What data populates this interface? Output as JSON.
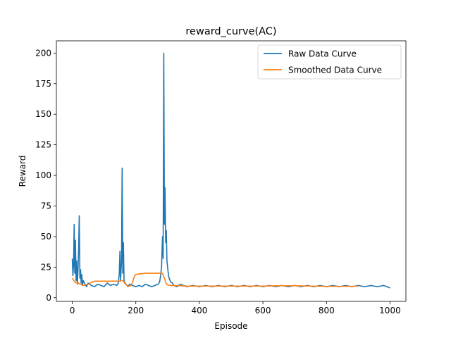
{
  "chart_data": {
    "type": "line",
    "title": "reward_curve(AC)",
    "xlabel": "Episode",
    "ylabel": "Reward",
    "xlim": [
      -50,
      1050
    ],
    "ylim": [
      -3,
      210
    ],
    "xticks": [
      0,
      200,
      400,
      600,
      800,
      1000
    ],
    "yticks": [
      0,
      25,
      50,
      75,
      100,
      125,
      150,
      175,
      200
    ],
    "grid": false,
    "legend_position": "top-right",
    "series": [
      {
        "name": "Raw Data Curve",
        "color": "#1f77b4",
        "points": [
          [
            0,
            32
          ],
          [
            2,
            18
          ],
          [
            4,
            26
          ],
          [
            6,
            60
          ],
          [
            8,
            20
          ],
          [
            10,
            47
          ],
          [
            12,
            14
          ],
          [
            14,
            30
          ],
          [
            16,
            11
          ],
          [
            18,
            22
          ],
          [
            20,
            40
          ],
          [
            22,
            67
          ],
          [
            24,
            16
          ],
          [
            26,
            23
          ],
          [
            28,
            12
          ],
          [
            30,
            19
          ],
          [
            32,
            10
          ],
          [
            35,
            14
          ],
          [
            40,
            11
          ],
          [
            45,
            9
          ],
          [
            50,
            12
          ],
          [
            60,
            10
          ],
          [
            70,
            9
          ],
          [
            80,
            11
          ],
          [
            90,
            10
          ],
          [
            100,
            9
          ],
          [
            110,
            12
          ],
          [
            120,
            10
          ],
          [
            130,
            11
          ],
          [
            140,
            10
          ],
          [
            145,
            12
          ],
          [
            148,
            20
          ],
          [
            150,
            38
          ],
          [
            152,
            14
          ],
          [
            155,
            30
          ],
          [
            157,
            106
          ],
          [
            159,
            20
          ],
          [
            161,
            45
          ],
          [
            163,
            14
          ],
          [
            166,
            12
          ],
          [
            170,
            11
          ],
          [
            175,
            9
          ],
          [
            180,
            11
          ],
          [
            190,
            10
          ],
          [
            200,
            9
          ],
          [
            210,
            10
          ],
          [
            220,
            9
          ],
          [
            230,
            11
          ],
          [
            240,
            10
          ],
          [
            250,
            9
          ],
          [
            260,
            10
          ],
          [
            270,
            11
          ],
          [
            275,
            13
          ],
          [
            278,
            18
          ],
          [
            281,
            25
          ],
          [
            284,
            50
          ],
          [
            286,
            32
          ],
          [
            288,
            200
          ],
          [
            290,
            60
          ],
          [
            292,
            90
          ],
          [
            294,
            45
          ],
          [
            296,
            55
          ],
          [
            298,
            30
          ],
          [
            300,
            25
          ],
          [
            303,
            18
          ],
          [
            306,
            15
          ],
          [
            310,
            13
          ],
          [
            315,
            12
          ],
          [
            320,
            10
          ],
          [
            330,
            9
          ],
          [
            340,
            11
          ],
          [
            350,
            10
          ],
          [
            360,
            9
          ],
          [
            380,
            10
          ],
          [
            400,
            9
          ],
          [
            420,
            10
          ],
          [
            440,
            9
          ],
          [
            460,
            10
          ],
          [
            480,
            9
          ],
          [
            500,
            10
          ],
          [
            520,
            9
          ],
          [
            540,
            10
          ],
          [
            560,
            9
          ],
          [
            580,
            10
          ],
          [
            600,
            9
          ],
          [
            620,
            10
          ],
          [
            640,
            9
          ],
          [
            660,
            10
          ],
          [
            680,
            9
          ],
          [
            700,
            10
          ],
          [
            720,
            9
          ],
          [
            740,
            10
          ],
          [
            760,
            9
          ],
          [
            780,
            10
          ],
          [
            800,
            9
          ],
          [
            820,
            10
          ],
          [
            840,
            9
          ],
          [
            860,
            10
          ],
          [
            880,
            9
          ],
          [
            900,
            10
          ],
          [
            920,
            9
          ],
          [
            940,
            10
          ],
          [
            960,
            9
          ],
          [
            980,
            10
          ],
          [
            1000,
            8
          ]
        ]
      },
      {
        "name": "Smoothed Data Curve",
        "color": "#ff7f0e",
        "points": [
          [
            0,
            16
          ],
          [
            5,
            14
          ],
          [
            10,
            12.5
          ],
          [
            15,
            12
          ],
          [
            20,
            12
          ],
          [
            25,
            11
          ],
          [
            30,
            10.5
          ],
          [
            35,
            10
          ],
          [
            40,
            10.5
          ],
          [
            50,
            11
          ],
          [
            60,
            12.5
          ],
          [
            70,
            13.5
          ],
          [
            80,
            13.5
          ],
          [
            100,
            13.5
          ],
          [
            120,
            13.5
          ],
          [
            140,
            13.5
          ],
          [
            150,
            13.5
          ],
          [
            155,
            14
          ],
          [
            160,
            14
          ],
          [
            165,
            12
          ],
          [
            170,
            10.5
          ],
          [
            175,
            9.5
          ],
          [
            180,
            9.5
          ],
          [
            185,
            10
          ],
          [
            190,
            13
          ],
          [
            195,
            17
          ],
          [
            200,
            19
          ],
          [
            210,
            19.5
          ],
          [
            230,
            20
          ],
          [
            250,
            20
          ],
          [
            270,
            20
          ],
          [
            280,
            20
          ],
          [
            285,
            19.5
          ],
          [
            290,
            16
          ],
          [
            295,
            12
          ],
          [
            300,
            10.5
          ],
          [
            310,
            10
          ],
          [
            320,
            10
          ],
          [
            340,
            9.8
          ],
          [
            360,
            9.5
          ],
          [
            400,
            9.5
          ],
          [
            450,
            9.5
          ],
          [
            500,
            9.5
          ],
          [
            550,
            9.5
          ],
          [
            600,
            9.5
          ],
          [
            650,
            9.8
          ],
          [
            700,
            9.8
          ],
          [
            750,
            9.5
          ],
          [
            800,
            9.3
          ],
          [
            850,
            9.3
          ],
          [
            880,
            9.3
          ],
          [
            900,
            9.5
          ]
        ]
      }
    ]
  }
}
